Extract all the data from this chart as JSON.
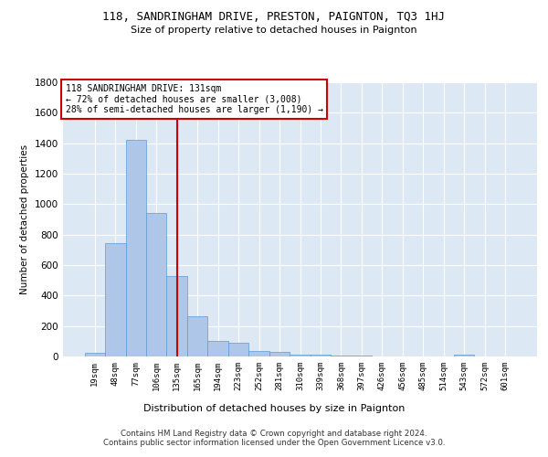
{
  "title": "118, SANDRINGHAM DRIVE, PRESTON, PAIGNTON, TQ3 1HJ",
  "subtitle": "Size of property relative to detached houses in Paignton",
  "xlabel": "Distribution of detached houses by size in Paignton",
  "ylabel": "Number of detached properties",
  "bar_values": [
    22,
    745,
    1420,
    940,
    530,
    265,
    105,
    92,
    38,
    28,
    15,
    15,
    5,
    5,
    3,
    2,
    2,
    2,
    12,
    0,
    0
  ],
  "categories": [
    "19sqm",
    "48sqm",
    "77sqm",
    "106sqm",
    "135sqm",
    "165sqm",
    "194sqm",
    "223sqm",
    "252sqm",
    "281sqm",
    "310sqm",
    "339sqm",
    "368sqm",
    "397sqm",
    "426sqm",
    "456sqm",
    "485sqm",
    "514sqm",
    "543sqm",
    "572sqm",
    "601sqm"
  ],
  "bar_color": "#aec6e8",
  "bar_edgecolor": "#5b9bd5",
  "bg_color": "#dde8f5",
  "grid_color": "#ffffff",
  "vline_x": 4.0,
  "vline_color": "#cc0000",
  "annotation_text": "118 SANDRINGHAM DRIVE: 131sqm\n← 72% of detached houses are smaller (3,008)\n28% of semi-detached houses are larger (1,190) →",
  "annotation_box_color": "#cc0000",
  "footer": "Contains HM Land Registry data © Crown copyright and database right 2024.\nContains public sector information licensed under the Open Government Licence v3.0.",
  "ylim": [
    0,
    1800
  ],
  "yticks": [
    0,
    200,
    400,
    600,
    800,
    1000,
    1200,
    1400,
    1600,
    1800
  ]
}
